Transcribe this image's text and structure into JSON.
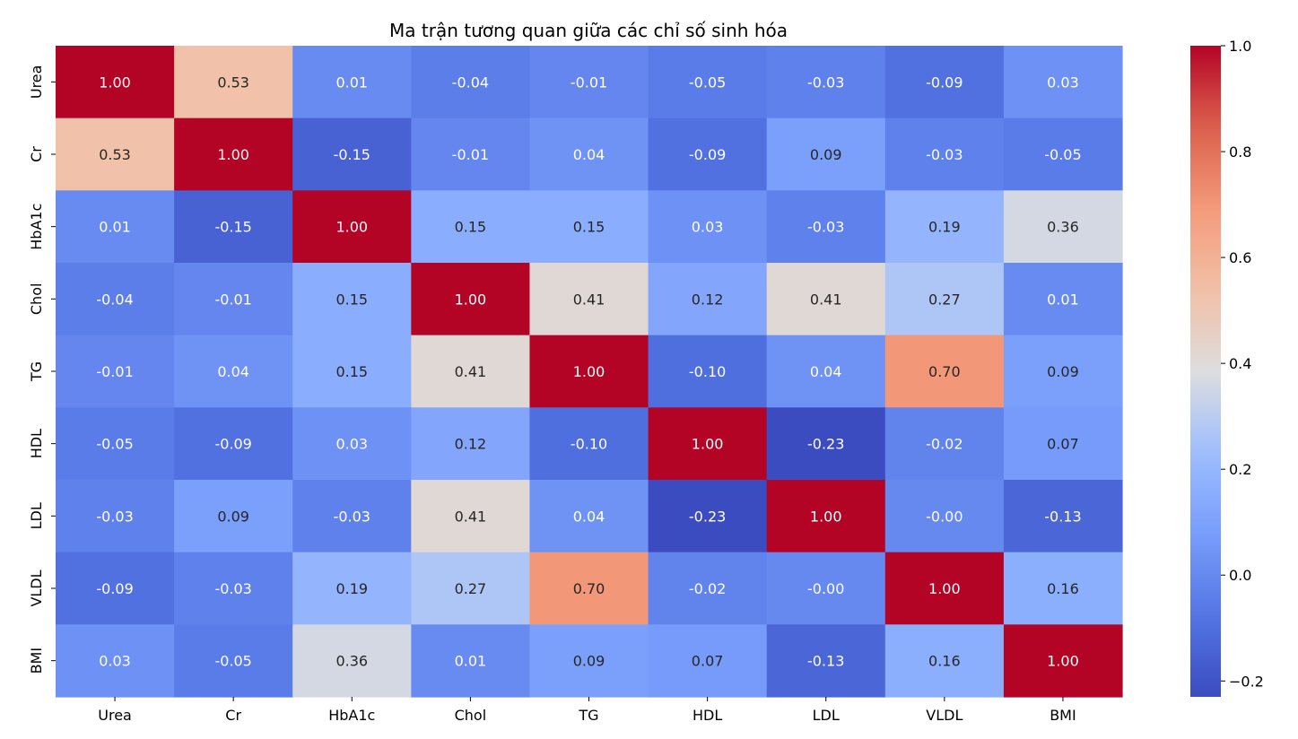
{
  "chart_data": {
    "type": "heatmap",
    "title": "Ma trận tương quan giữa các chỉ số sinh hóa",
    "xlabel": "",
    "ylabel": "",
    "x_labels": [
      "Urea",
      "Cr",
      "HbA1c",
      "Chol",
      "TG",
      "HDL",
      "LDL",
      "VLDL",
      "BMI"
    ],
    "y_labels": [
      "Urea",
      "Cr",
      "HbA1c",
      "Chol",
      "TG",
      "HDL",
      "LDL",
      "VLDL",
      "BMI"
    ],
    "values": [
      [
        1.0,
        0.53,
        0.01,
        -0.04,
        -0.01,
        -0.05,
        -0.03,
        -0.09,
        0.03
      ],
      [
        0.53,
        1.0,
        -0.15,
        -0.01,
        0.04,
        -0.09,
        0.09,
        -0.03,
        -0.05
      ],
      [
        0.01,
        -0.15,
        1.0,
        0.15,
        0.15,
        0.03,
        -0.03,
        0.19,
        0.36
      ],
      [
        -0.04,
        -0.01,
        0.15,
        1.0,
        0.41,
        0.12,
        0.41,
        0.27,
        0.01
      ],
      [
        -0.01,
        0.04,
        0.15,
        0.41,
        1.0,
        -0.1,
        0.04,
        0.7,
        0.09
      ],
      [
        -0.05,
        -0.09,
        0.03,
        0.12,
        -0.1,
        1.0,
        -0.23,
        -0.02,
        0.07
      ],
      [
        -0.03,
        0.09,
        -0.03,
        0.41,
        0.04,
        -0.23,
        1.0,
        -0.0,
        -0.13
      ],
      [
        -0.09,
        -0.03,
        0.19,
        0.27,
        0.7,
        -0.02,
        -0.0,
        1.0,
        0.16
      ],
      [
        0.03,
        -0.05,
        0.36,
        0.01,
        0.09,
        0.07,
        -0.13,
        0.16,
        1.0
      ]
    ],
    "value_labels": [
      [
        "1.00",
        "0.53",
        "0.01",
        "-0.04",
        "-0.01",
        "-0.05",
        "-0.03",
        "-0.09",
        "0.03"
      ],
      [
        "0.53",
        "1.00",
        "-0.15",
        "-0.01",
        "0.04",
        "-0.09",
        "0.09",
        "-0.03",
        "-0.05"
      ],
      [
        "0.01",
        "-0.15",
        "1.00",
        "0.15",
        "0.15",
        "0.03",
        "-0.03",
        "0.19",
        "0.36"
      ],
      [
        "-0.04",
        "-0.01",
        "0.15",
        "1.00",
        "0.41",
        "0.12",
        "0.41",
        "0.27",
        "0.01"
      ],
      [
        "-0.01",
        "0.04",
        "0.15",
        "0.41",
        "1.00",
        "-0.10",
        "0.04",
        "0.70",
        "0.09"
      ],
      [
        "-0.05",
        "-0.09",
        "0.03",
        "0.12",
        "-0.10",
        "1.00",
        "-0.23",
        "-0.02",
        "0.07"
      ],
      [
        "-0.03",
        "0.09",
        "-0.03",
        "0.41",
        "0.04",
        "-0.23",
        "1.00",
        "-0.00",
        "-0.13"
      ],
      [
        "-0.09",
        "-0.03",
        "0.19",
        "0.27",
        "0.70",
        "-0.02",
        "-0.00",
        "1.00",
        "0.16"
      ],
      [
        "0.03",
        "-0.05",
        "0.36",
        "0.01",
        "0.09",
        "0.07",
        "-0.13",
        "0.16",
        "1.00"
      ]
    ],
    "colormap": "coolwarm",
    "vmin": -0.23,
    "vmax": 1.0,
    "colorbar_ticks": [
      1.0,
      0.8,
      0.6,
      0.4,
      0.2,
      0.0,
      -0.2
    ],
    "colorbar_tick_labels": [
      "1.0",
      "0.8",
      "0.6",
      "0.4",
      "0.2",
      "0.0",
      "−0.2"
    ],
    "grid": false,
    "legend": "colorbar-right"
  }
}
